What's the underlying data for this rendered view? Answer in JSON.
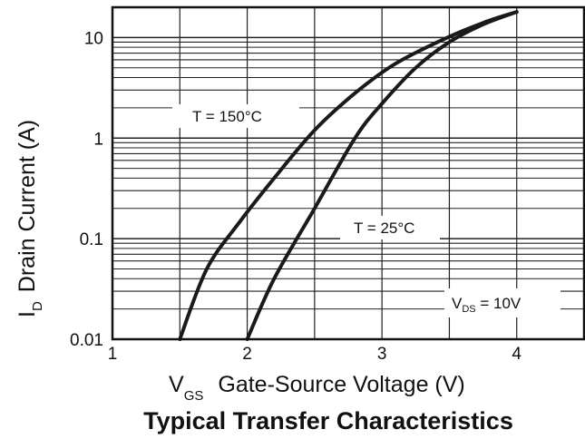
{
  "chart_data": {
    "type": "line",
    "title": "Typical Transfer Characteristics",
    "xlabel": {
      "main": "V",
      "sub": "GS",
      "text": "Gate-Source Voltage (V)"
    },
    "ylabel": {
      "main": "I",
      "sub": "D",
      "text": "Drain Current (A)"
    },
    "x_scale": "linear",
    "y_scale": "log",
    "xlim": [
      1,
      4.5
    ],
    "ylim": [
      0.01,
      20
    ],
    "grid": true,
    "x_ticks": [
      {
        "value": 1,
        "label": "1"
      },
      {
        "value": 2,
        "label": "2"
      },
      {
        "value": 3,
        "label": "3"
      },
      {
        "value": 4,
        "label": "4"
      }
    ],
    "y_ticks": [
      {
        "value": 0.01,
        "label": "0.01"
      },
      {
        "value": 0.1,
        "label": "0.1"
      },
      {
        "value": 1,
        "label": "1"
      },
      {
        "value": 10,
        "label": "10"
      }
    ],
    "series": [
      {
        "name": "T = 150°C",
        "x": [
          1.5,
          1.7,
          1.95,
          2.2,
          2.5,
          2.8,
          3.1,
          3.45,
          3.75,
          4.0
        ],
        "y": [
          0.01,
          0.05,
          0.15,
          0.4,
          1.2,
          2.8,
          5.5,
          9.5,
          14,
          18
        ]
      },
      {
        "name": "T = 25°C",
        "x": [
          2.0,
          2.2,
          2.5,
          2.8,
          3.0,
          3.25,
          3.5,
          3.75,
          4.0
        ],
        "y": [
          0.01,
          0.04,
          0.2,
          1.0,
          2.2,
          5.0,
          9.0,
          13.5,
          18
        ]
      }
    ],
    "annotations": {
      "t150": "T = 150°C",
      "t25": "T = 25°C",
      "vds_main": "V",
      "vds_sub": "DS",
      "vds_value": " = 10V"
    }
  }
}
